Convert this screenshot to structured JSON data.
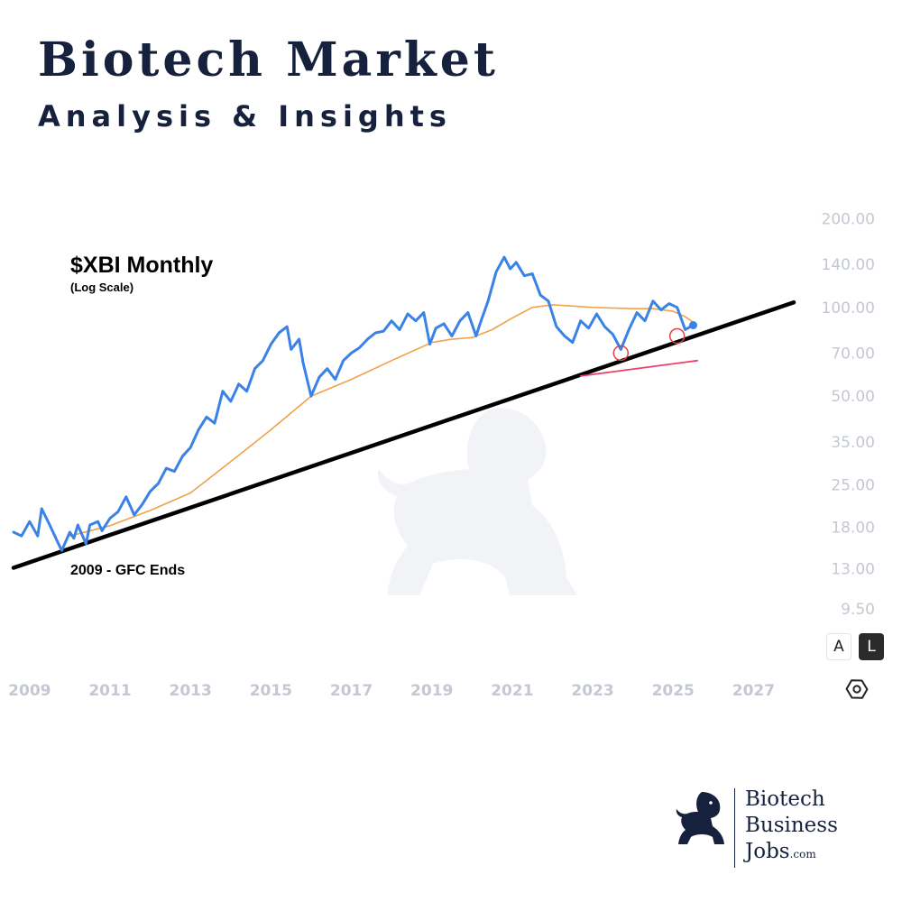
{
  "header": {
    "title": "Biotech Market",
    "subtitle": "Analysis & Insights"
  },
  "chart_data": {
    "type": "line",
    "title": "$XBI Monthly",
    "subtitle": "(Log Scale)",
    "annotation": "2009 - GFC Ends",
    "yscale": "log",
    "ylim": [
      8.5,
      215
    ],
    "xlim": [
      2008.6,
      2028.0
    ],
    "x_ticks": [
      "2009",
      "2011",
      "2013",
      "2015",
      "2017",
      "2019",
      "2021",
      "2023",
      "2025",
      "2027"
    ],
    "y_ticks": [
      "200.00",
      "140.00",
      "100.00",
      "70.00",
      "50.00",
      "35.00",
      "25.00",
      "18.00",
      "13.00",
      "9.50"
    ],
    "grid": false,
    "colors": {
      "price": "#3b82e6",
      "moving_average": "#f0a24a",
      "trendline": "#000000",
      "support_line": "#e8406a",
      "marker_circle": "#e0404a",
      "tick_label": "#c4c8d2"
    },
    "series": [
      {
        "name": "",
        "role": "price",
        "x": [
          2008.6,
          2008.8,
          2009.0,
          2009.2,
          2009.3,
          2009.5,
          2009.7,
          2009.8,
          2010.0,
          2010.1,
          2010.2,
          2010.4,
          2010.5,
          2010.7,
          2010.8,
          2011.0,
          2011.2,
          2011.4,
          2011.6,
          2011.8,
          2012.0,
          2012.2,
          2012.4,
          2012.6,
          2012.8,
          2013.0,
          2013.2,
          2013.4,
          2013.6,
          2013.8,
          2014.0,
          2014.2,
          2014.4,
          2014.6,
          2014.8,
          2015.0,
          2015.2,
          2015.4,
          2015.5,
          2015.7,
          2015.8,
          2016.0,
          2016.2,
          2016.4,
          2016.6,
          2016.8,
          2017.0,
          2017.2,
          2017.4,
          2017.6,
          2017.8,
          2018.0,
          2018.2,
          2018.4,
          2018.6,
          2018.8,
          2018.95,
          2019.1,
          2019.3,
          2019.5,
          2019.7,
          2019.9,
          2020.1,
          2020.2,
          2020.4,
          2020.6,
          2020.8,
          2020.95,
          2021.1,
          2021.3,
          2021.5,
          2021.7,
          2021.9,
          2022.1,
          2022.3,
          2022.5,
          2022.7,
          2022.9,
          2023.1,
          2023.3,
          2023.5,
          2023.7,
          2023.9,
          2024.1,
          2024.3,
          2024.5,
          2024.7,
          2024.9,
          2025.1,
          2025.3,
          2025.5
        ],
        "y": [
          17.3,
          16.8,
          18.8,
          16.8,
          20.8,
          18.3,
          16.0,
          15.0,
          17.3,
          16.5,
          18.3,
          15.8,
          18.3,
          18.8,
          17.5,
          19.3,
          20.3,
          22.8,
          19.8,
          21.5,
          23.8,
          25.3,
          28.5,
          27.8,
          31.3,
          33.5,
          38.5,
          42.5,
          40.5,
          52.0,
          48.0,
          55.0,
          52.0,
          62.0,
          66.0,
          75.0,
          82.0,
          86.0,
          72.0,
          78.0,
          65.0,
          50.0,
          58.0,
          62.0,
          57.0,
          66.0,
          70.0,
          73.0,
          78.0,
          82.0,
          83.0,
          90.0,
          84.0,
          95.0,
          90.0,
          96.0,
          75.0,
          85.0,
          88.0,
          80.0,
          90.0,
          96.0,
          80.0,
          88.0,
          105.0,
          132.0,
          148.0,
          135.0,
          142.0,
          128.0,
          130.0,
          110.0,
          105.0,
          86.0,
          80.0,
          76.0,
          90.0,
          85.0,
          95.0,
          86.0,
          81.0,
          72.0,
          84.0,
          96.0,
          90.0,
          105.0,
          98.0,
          103.0,
          100.0,
          84.0,
          87.0
        ]
      },
      {
        "name": "",
        "role": "moving_average",
        "x": [
          2010.0,
          2011.0,
          2012.0,
          2013.0,
          2014.0,
          2015.0,
          2016.0,
          2017.0,
          2018.0,
          2019.0,
          2019.5,
          2020.0,
          2020.5,
          2021.0,
          2021.5,
          2022.0,
          2022.5,
          2023.0,
          2024.0,
          2024.5,
          2025.0,
          2025.3,
          2025.5
        ],
        "y": [
          16.8,
          18.2,
          20.5,
          23.5,
          30.0,
          38.5,
          50.0,
          57.0,
          66.0,
          76.0,
          78.0,
          79.0,
          84.0,
          92.0,
          100.0,
          102.0,
          101.0,
          100.0,
          99.0,
          99.0,
          97.0,
          93.0,
          89.0
        ]
      },
      {
        "name": "",
        "role": "trendline",
        "x": [
          2008.6,
          2028.0
        ],
        "y": [
          13.1,
          104.0
        ]
      },
      {
        "name": "",
        "role": "support_line",
        "x": [
          2022.7,
          2025.6
        ],
        "y": [
          58.5,
          66.0
        ]
      }
    ],
    "highlight_points": [
      {
        "x": 2023.7,
        "y": 70.0
      },
      {
        "x": 2025.1,
        "y": 80.0
      }
    ],
    "last_point": {
      "x": 2025.5,
      "y": 87.0
    },
    "controls": {
      "auto_label": "A",
      "log_label": "L"
    }
  },
  "logo": {
    "line1": "Biotech",
    "line2": "Business",
    "line3": "Jobs",
    "suffix": ".com"
  }
}
